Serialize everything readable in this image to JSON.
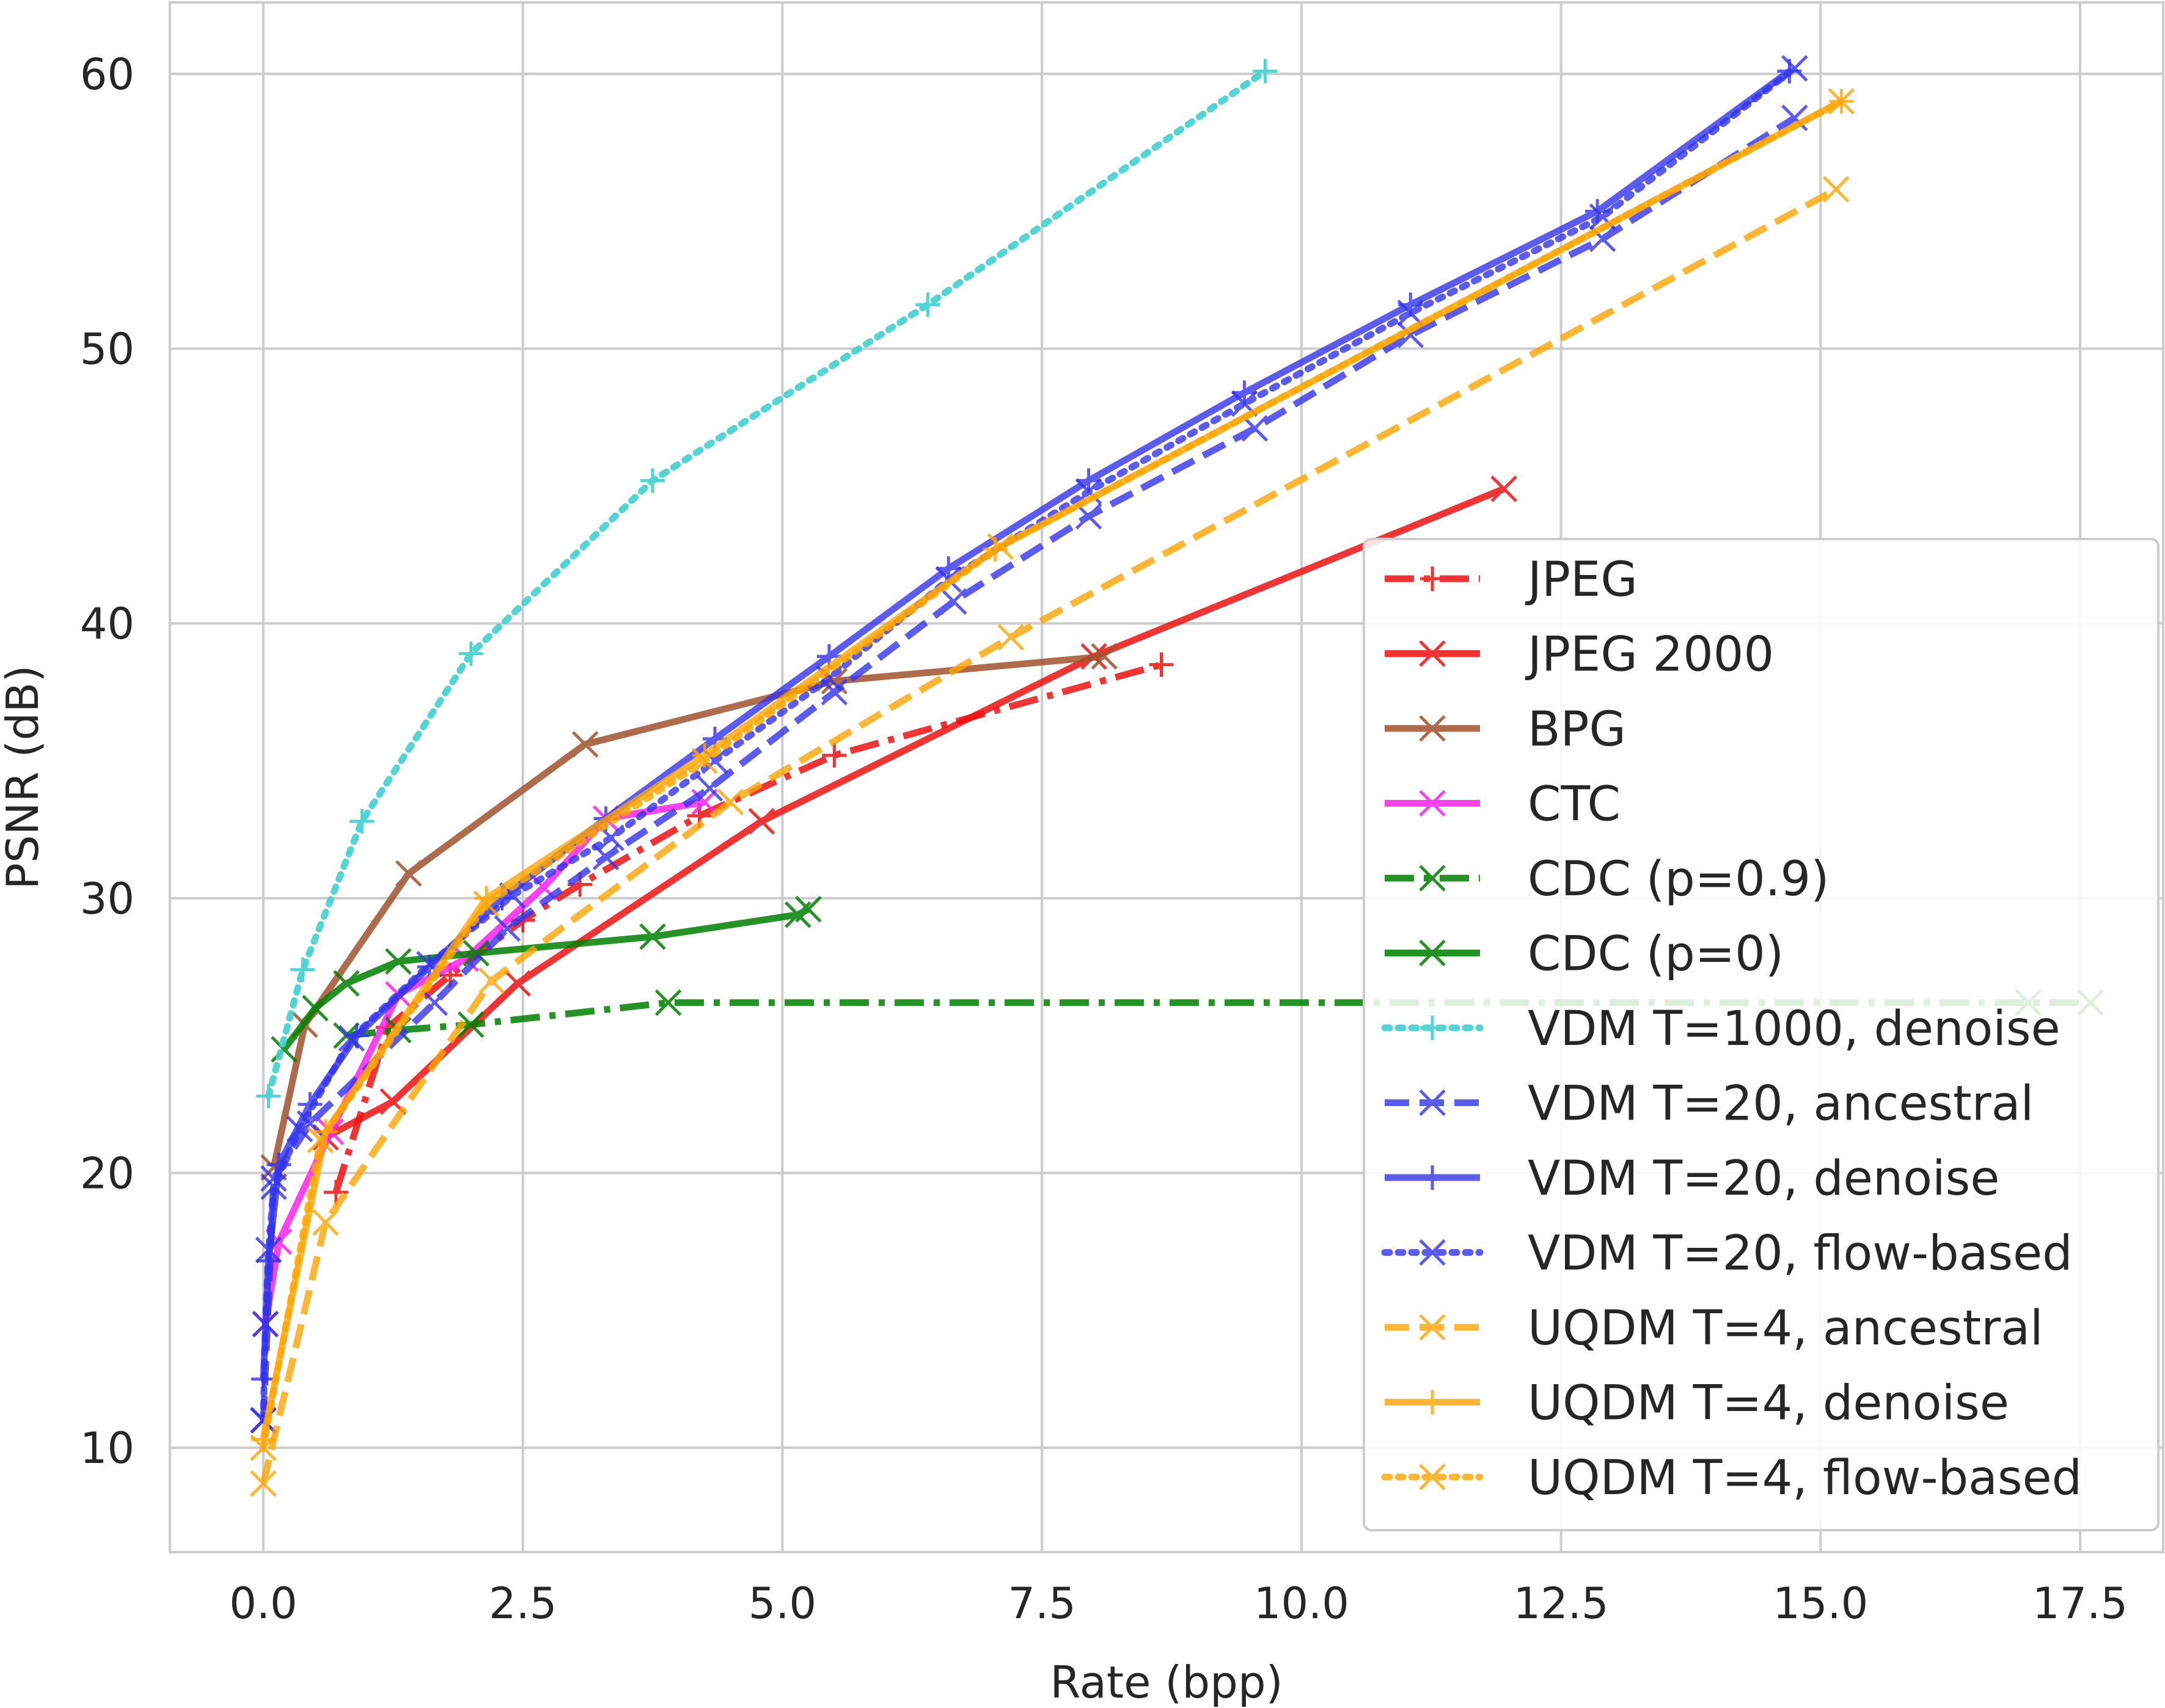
{
  "chart_data": {
    "type": "line",
    "title": "",
    "xlabel": "Rate (bpp)",
    "ylabel": "PSNR (dB)",
    "xlim": [
      -0.9,
      18.3
    ],
    "ylim": [
      6.2,
      62.6
    ],
    "x_ticks": [
      0.0,
      2.5,
      5.0,
      7.5,
      10.0,
      12.5,
      15.0,
      17.5
    ],
    "x_tick_labels": [
      "0.0",
      "2.5",
      "5.0",
      "7.5",
      "10.0",
      "12.5",
      "15.0",
      "17.5"
    ],
    "y_ticks": [
      10,
      20,
      30,
      40,
      50,
      60
    ],
    "y_tick_labels": [
      "10",
      "20",
      "30",
      "40",
      "50",
      "60"
    ],
    "grid": true,
    "legend_position": "lower-right",
    "series": [
      {
        "name": "JPEG",
        "color": "#ee1111",
        "opacity": 0.85,
        "dash": "dashdot",
        "marker": "plus",
        "x": [
          0.7,
          1.2,
          1.8,
          2.5,
          3.05,
          4.2,
          5.5,
          8.65
        ],
        "y": [
          19.3,
          25.3,
          27.2,
          29.2,
          30.5,
          33.0,
          35.2,
          38.5
        ]
      },
      {
        "name": "JPEG 2000",
        "color": "#ee1111",
        "opacity": 0.85,
        "dash": "solid",
        "marker": "x",
        "x": [
          0.6,
          1.25,
          2.45,
          4.8,
          8.0,
          11.95
        ],
        "y": [
          21.3,
          22.6,
          26.9,
          32.8,
          38.8,
          44.9
        ]
      },
      {
        "name": "BPG",
        "color": "#a0522d",
        "opacity": 0.85,
        "dash": "solid",
        "marker": "x",
        "x": [
          0.1,
          0.4,
          1.4,
          3.1,
          5.5,
          8.1
        ],
        "y": [
          20.2,
          25.4,
          30.9,
          35.6,
          37.9,
          38.8
        ]
      },
      {
        "name": "CTC",
        "color": "#ff22ee",
        "opacity": 0.85,
        "dash": "solid",
        "marker": "x",
        "x": [
          0.02,
          0.15,
          0.65,
          1.3,
          1.95,
          2.7,
          3.3,
          4.25
        ],
        "y": [
          14.5,
          17.5,
          21.5,
          26.5,
          27.8,
          30.4,
          32.9,
          33.5
        ]
      },
      {
        "name": "CDC (p=0.9)",
        "color": "#008000",
        "opacity": 0.85,
        "dash": "dashdot",
        "marker": "x",
        "x": [
          0.8,
          1.3,
          2.0,
          3.9,
          17.0,
          17.6
        ],
        "y": [
          25.0,
          25.2,
          25.4,
          26.2,
          26.2,
          26.2
        ]
      },
      {
        "name": "CDC (p=0)",
        "color": "#008000",
        "opacity": 0.85,
        "dash": "solid",
        "marker": "x",
        "x": [
          0.2,
          0.5,
          0.8,
          1.3,
          2.05,
          3.75,
          5.15,
          5.25
        ],
        "y": [
          24.5,
          26.0,
          26.9,
          27.7,
          28.0,
          28.6,
          29.4,
          29.6
        ]
      },
      {
        "name": "VDM T=1000, denoise",
        "color": "#40d0d0",
        "opacity": 0.9,
        "dash": "dotted",
        "marker": "plus",
        "x": [
          0.05,
          0.38,
          0.95,
          2.0,
          3.75,
          6.4,
          9.65
        ],
        "y": [
          22.8,
          27.4,
          32.8,
          38.9,
          45.2,
          51.6,
          60.1
        ]
      },
      {
        "name": "VDM T=20, ancestral",
        "color": "#3333ee",
        "opacity": 0.8,
        "dash": "dashed",
        "marker": "x",
        "x": [
          0.0,
          0.1,
          0.45,
          1.65,
          2.35,
          3.3,
          4.3,
          5.5,
          6.65,
          7.95,
          9.55,
          11.05,
          12.9,
          14.75
        ],
        "y": [
          11.0,
          19.8,
          21.8,
          26.2,
          28.9,
          31.5,
          34.0,
          37.5,
          40.8,
          43.9,
          47.1,
          50.5,
          54.0,
          58.4
        ]
      },
      {
        "name": "VDM T=20, denoise",
        "color": "#3333ee",
        "opacity": 0.8,
        "dash": "solid",
        "marker": "plus",
        "x": [
          0.0,
          0.05,
          0.15,
          0.45,
          0.9,
          1.6,
          2.3,
          3.3,
          4.35,
          5.45,
          6.6,
          7.95,
          9.45,
          11.05,
          12.85,
          14.7
        ],
        "y": [
          12.5,
          16.8,
          20.3,
          22.5,
          25.0,
          27.5,
          30.0,
          32.9,
          35.8,
          38.8,
          42.0,
          45.2,
          48.4,
          51.6,
          55.0,
          60.1
        ]
      },
      {
        "name": "VDM T=20, flow-based",
        "color": "#3333ee",
        "opacity": 0.8,
        "dash": "dotted",
        "marker": "x",
        "x": [
          0.0,
          0.02,
          0.05,
          0.1,
          0.35,
          0.85,
          1.6,
          2.4,
          3.35,
          4.35,
          5.45,
          6.6,
          7.95,
          9.45,
          11.05,
          12.9,
          14.75
        ],
        "y": [
          11.0,
          14.5,
          17.2,
          19.5,
          21.6,
          24.9,
          27.6,
          30.1,
          32.2,
          35.0,
          38.0,
          41.6,
          44.8,
          48.0,
          51.3,
          54.8,
          60.2
        ]
      },
      {
        "name": "UQDM T=4, ancestral",
        "color": "#ffa500",
        "opacity": 0.8,
        "dash": "dashed",
        "marker": "x",
        "x": [
          0.0,
          0.6,
          2.2,
          4.5,
          7.2,
          15.15
        ],
        "y": [
          8.7,
          18.2,
          27.0,
          33.5,
          39.5,
          55.8
        ]
      },
      {
        "name": "UQDM T=4, denoise",
        "color": "#ffa500",
        "opacity": 0.8,
        "dash": "solid",
        "marker": "plus",
        "x": [
          0.0,
          0.6,
          2.15,
          4.25,
          7.05,
          15.2
        ],
        "y": [
          10.3,
          21.5,
          30.0,
          35.2,
          42.7,
          59.0
        ]
      },
      {
        "name": "UQDM T=4, flow-based",
        "color": "#ffa500",
        "opacity": 0.8,
        "dash": "dotted",
        "marker": "x",
        "x": [
          0.0,
          0.55,
          2.15,
          4.25,
          7.1,
          15.2
        ],
        "y": [
          10.0,
          21.2,
          29.8,
          35.0,
          42.8,
          59.0
        ]
      }
    ]
  }
}
